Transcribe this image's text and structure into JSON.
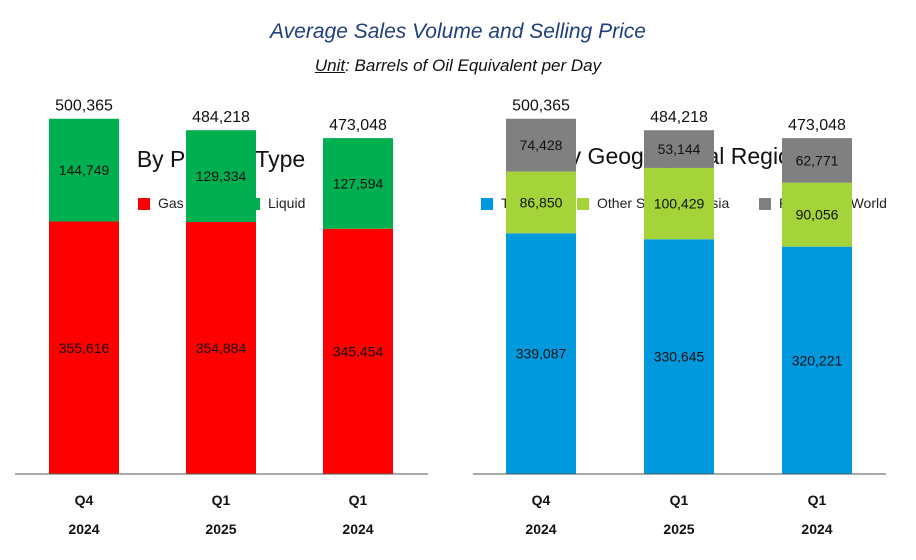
{
  "header": {
    "title": "Average Sales Volume and Selling Price",
    "unit_label": "Unit",
    "unit_text": ": Barrels of Oil Equivalent per Day"
  },
  "chart_data": [
    {
      "type": "bar",
      "stacked": true,
      "title": "By Product Type",
      "legend_position": "top",
      "categories": [
        {
          "period": "Q4",
          "year": "2024"
        },
        {
          "period": "Q1",
          "year": "2025"
        },
        {
          "period": "Q1",
          "year": "2024"
        }
      ],
      "totals": [
        "500,365",
        "484,218",
        "473,048"
      ],
      "series": [
        {
          "name": "Gas",
          "color": "#ff0000",
          "values": [
            355616,
            354884,
            345454
          ],
          "labels": [
            "355,616",
            "354,884",
            "345,454"
          ]
        },
        {
          "name": "Liquid",
          "color": "#00b050",
          "values": [
            144749,
            129334,
            127594
          ],
          "labels": [
            "144,749",
            "129,334",
            "127,594"
          ]
        }
      ],
      "ylim": [
        0,
        650000
      ],
      "grid": false
    },
    {
      "type": "bar",
      "stacked": true,
      "title": "By Geographical Region",
      "legend_position": "top",
      "categories": [
        {
          "period": "Q4",
          "year": "2024"
        },
        {
          "period": "Q1",
          "year": "2025"
        },
        {
          "period": "Q1",
          "year": "2024"
        }
      ],
      "totals": [
        "500,365",
        "484,218",
        "473,048"
      ],
      "series": [
        {
          "name": "Thailand",
          "color": "#0099dd",
          "values": [
            339087,
            330645,
            320221
          ],
          "labels": [
            "339,087",
            "330,645",
            "320,221"
          ]
        },
        {
          "name": "Other Southeast Asia",
          "color": "#a5d43a",
          "values": [
            86850,
            100429,
            90056
          ],
          "labels": [
            "86,850",
            "100,429",
            "90,056"
          ]
        },
        {
          "name": "Rest of the World",
          "color": "#808080",
          "values": [
            74428,
            53144,
            62771
          ],
          "labels": [
            "74,428",
            "53,144",
            "62,771"
          ]
        }
      ],
      "ylim": [
        0,
        650000
      ],
      "grid": false
    }
  ]
}
